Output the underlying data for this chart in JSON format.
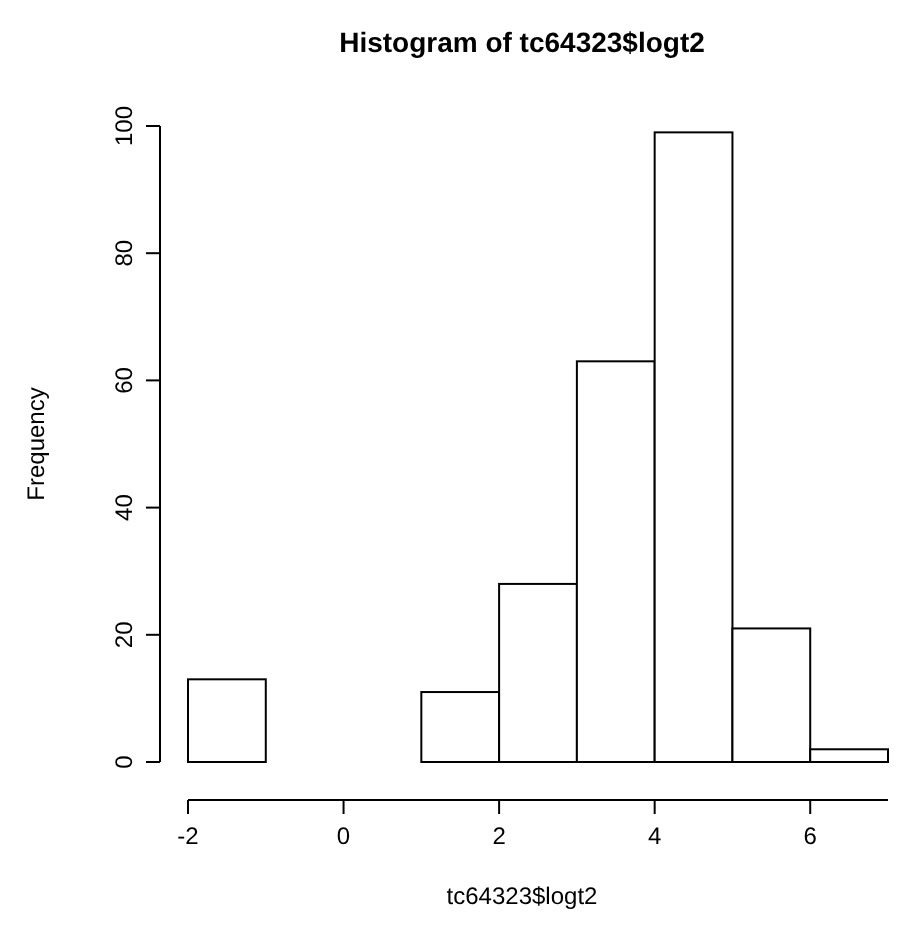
{
  "chart_data": {
    "type": "histogram",
    "title": "Histogram of tc64323$logt2",
    "xlabel": "tc64323$logt2",
    "ylabel": "Frequency",
    "bins": [
      -2,
      -1,
      0,
      1,
      2,
      3,
      4,
      5,
      6,
      7
    ],
    "values": [
      13,
      0,
      0,
      11,
      28,
      63,
      99,
      21,
      2
    ],
    "color": "#ffffff",
    "xlim": [
      -2,
      7
    ],
    "xticks": [
      -2,
      0,
      2,
      4,
      6
    ],
    "ylim": [
      0,
      100
    ],
    "yticks": [
      0,
      20,
      40,
      60,
      80,
      100
    ]
  }
}
